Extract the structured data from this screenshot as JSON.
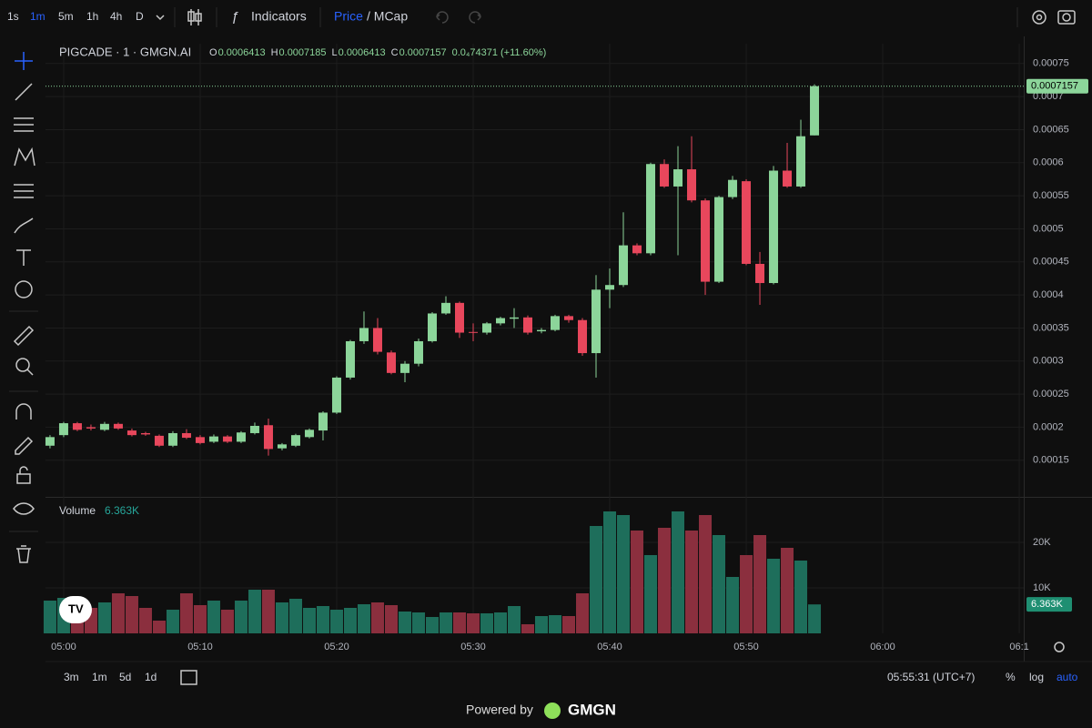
{
  "toolbar": {
    "intervals": [
      "1s",
      "1m",
      "5m",
      "1h",
      "4h",
      "D"
    ],
    "indicators": "Indicators",
    "price": "Price",
    "mcap": "/ MCap"
  },
  "legend": {
    "symbol": "PIGCADE · 1 · GMGN.AI",
    "fields": [
      {
        "label": "O",
        "value": "0.0006413"
      },
      {
        "label": "H",
        "value": "0.0007185"
      },
      {
        "label": "L",
        "value": "0.0006413"
      },
      {
        "label": "C",
        "value": "0.0007157"
      }
    ],
    "change": "0.0₄74371 (+11.60%)"
  },
  "chart_data": {
    "type": "candlestick",
    "x": [
      -1,
      0,
      1,
      2,
      3,
      4,
      5,
      6,
      7,
      8,
      9,
      10,
      11,
      12,
      13,
      14,
      15,
      16,
      17,
      18,
      19,
      20,
      21,
      22,
      23,
      24,
      25,
      26,
      27,
      28,
      29,
      30,
      31,
      32,
      33,
      34,
      35,
      36,
      37,
      38,
      39,
      40,
      41,
      42,
      43,
      44,
      45,
      46,
      47,
      48,
      49,
      50,
      51,
      52,
      53,
      54,
      55
    ],
    "open": [
      0.000172,
      0.000188,
      0.000206,
      0.0002,
      0.000196,
      0.000205,
      0.000195,
      0.000191,
      0.000187,
      0.000172,
      0.000191,
      0.000185,
      0.000178,
      0.000186,
      0.000178,
      0.000191,
      0.000203,
      0.000168,
      0.000172,
      0.000185,
      0.000195,
      0.000222,
      0.000275,
      0.00033,
      0.00035,
      0.000313,
      0.000282,
      0.000296,
      0.00033,
      0.000372,
      0.000388,
      0.000344,
      0.000343,
      0.000357,
      0.000364,
      0.000366,
      0.000345,
      0.000347,
      0.000368,
      0.000362,
      0.000312,
      0.000408,
      0.000415,
      0.000475,
      0.000463,
      0.000598,
      0.000564,
      0.00059,
      0.000543,
      0.00042,
      0.000548,
      0.000572,
      0.000447,
      0.000418,
      0.000588,
      0.000564,
      0.0006413
    ],
    "high": [
      0.000188,
      0.000208,
      0.000208,
      0.000204,
      0.000208,
      0.000207,
      0.000198,
      0.000193,
      0.000189,
      0.000194,
      0.000197,
      0.000188,
      0.000189,
      0.000188,
      0.000194,
      0.000207,
      0.000213,
      0.000176,
      0.00019,
      0.000198,
      0.000224,
      0.000277,
      0.000332,
      0.000375,
      0.000365,
      0.000316,
      0.0003,
      0.000334,
      0.000374,
      0.000398,
      0.00039,
      0.000357,
      0.000359,
      0.000367,
      0.00038,
      0.000369,
      0.00035,
      0.00037,
      0.00037,
      0.000365,
      0.00043,
      0.00044,
      0.000525,
      0.000478,
      0.0006,
      0.000605,
      0.000625,
      0.00064,
      0.000546,
      0.00055,
      0.00058,
      0.000575,
      0.000465,
      0.000595,
      0.00063,
      0.000665,
      0.0007185
    ],
    "low": [
      0.000168,
      0.000185,
      0.000194,
      0.000195,
      0.000194,
      0.000196,
      0.000186,
      0.000187,
      0.00017,
      0.00017,
      0.000182,
      0.000174,
      0.000176,
      0.000176,
      0.000176,
      0.000189,
      0.000157,
      0.000165,
      0.00017,
      0.000183,
      0.00018,
      0.00022,
      0.000272,
      0.000326,
      0.00031,
      0.00028,
      0.000268,
      0.000292,
      0.000328,
      0.00037,
      0.000335,
      0.00033,
      0.00034,
      0.000354,
      0.00035,
      0.00034,
      0.000342,
      0.000345,
      0.000358,
      0.000308,
      0.000275,
      0.00038,
      0.000412,
      0.00046,
      0.00046,
      0.000562,
      0.00046,
      0.00054,
      0.0004,
      0.000418,
      0.000545,
      0.000445,
      0.000385,
      0.000416,
      0.000562,
      0.000562,
      0.0006413
    ],
    "close": [
      0.000185,
      0.000206,
      0.000196,
      0.000198,
      0.000205,
      0.000198,
      0.000188,
      0.000189,
      0.000172,
      0.000191,
      0.000184,
      0.000176,
      0.000186,
      0.000178,
      0.000192,
      0.000202,
      0.000167,
      0.000174,
      0.000188,
      0.000196,
      0.000222,
      0.000275,
      0.00033,
      0.00035,
      0.000314,
      0.000282,
      0.000296,
      0.00033,
      0.000372,
      0.000388,
      0.000343,
      0.000343,
      0.000357,
      0.000365,
      0.000366,
      0.000343,
      0.000347,
      0.000368,
      0.000362,
      0.000312,
      0.000408,
      0.000415,
      0.000475,
      0.000463,
      0.000598,
      0.000564,
      0.00059,
      0.000543,
      0.00042,
      0.000548,
      0.000574,
      0.000447,
      0.000418,
      0.000588,
      0.000564,
      0.00064,
      0.0007157
    ],
    "volume": [
      7200,
      7800,
      6000,
      5600,
      6800,
      8800,
      8200,
      5600,
      2800,
      5200,
      8800,
      6200,
      7200,
      5200,
      7200,
      9600,
      9600,
      6800,
      7600,
      5600,
      6000,
      5200,
      5600,
      6400,
      6800,
      6200,
      4800,
      4600,
      3600,
      4600,
      4600,
      4400,
      4400,
      4600,
      6000,
      2000,
      3800,
      4000,
      3800,
      8800,
      23600,
      26800,
      26000,
      22600,
      17200,
      23200,
      26800,
      22600,
      26000,
      21600,
      12400,
      17200,
      21600,
      16400,
      18800,
      16000,
      6363
    ],
    "volume_title": "Volume",
    "volume_last_label": "6.363K",
    "xlim": [
      -1.33,
      70.33
    ],
    "xticks": [
      {
        "value": 0,
        "label": "05:00"
      },
      {
        "value": 10,
        "label": "05:10"
      },
      {
        "value": 20,
        "label": "05:20"
      },
      {
        "value": 30,
        "label": "05:30"
      },
      {
        "value": 40,
        "label": "05:40"
      },
      {
        "value": 50,
        "label": "05:50"
      },
      {
        "value": 60,
        "label": "06:00"
      },
      {
        "value": 70,
        "label": "06:1"
      }
    ],
    "ylim": [
      9.6e-05,
      0.00078
    ],
    "yticks": [
      0.00075,
      0.0007,
      0.00065,
      0.0006,
      0.00055,
      0.0005,
      0.00045,
      0.0004,
      0.00035,
      0.0003,
      0.00025,
      0.0002,
      0.00015
    ],
    "y2lim": [
      0,
      29600
    ],
    "y2ticks": [
      {
        "value": 10000,
        "label": "10K"
      },
      {
        "value": 20000,
        "label": "20K"
      }
    ],
    "grid": true,
    "up_color": "#8cd59a",
    "down_color": "#e8475c",
    "volume_up_color": "#1e6e5b",
    "volume_down_color": "#8b2f3e"
  },
  "footer": {
    "ranges": [
      "3m",
      "1m",
      "5d",
      "1d"
    ],
    "clock": "05:55:31 (UTC+7)",
    "scale_options": [
      "%",
      "log",
      "auto"
    ],
    "powered_by": "Powered by",
    "brand": "GMGN"
  }
}
